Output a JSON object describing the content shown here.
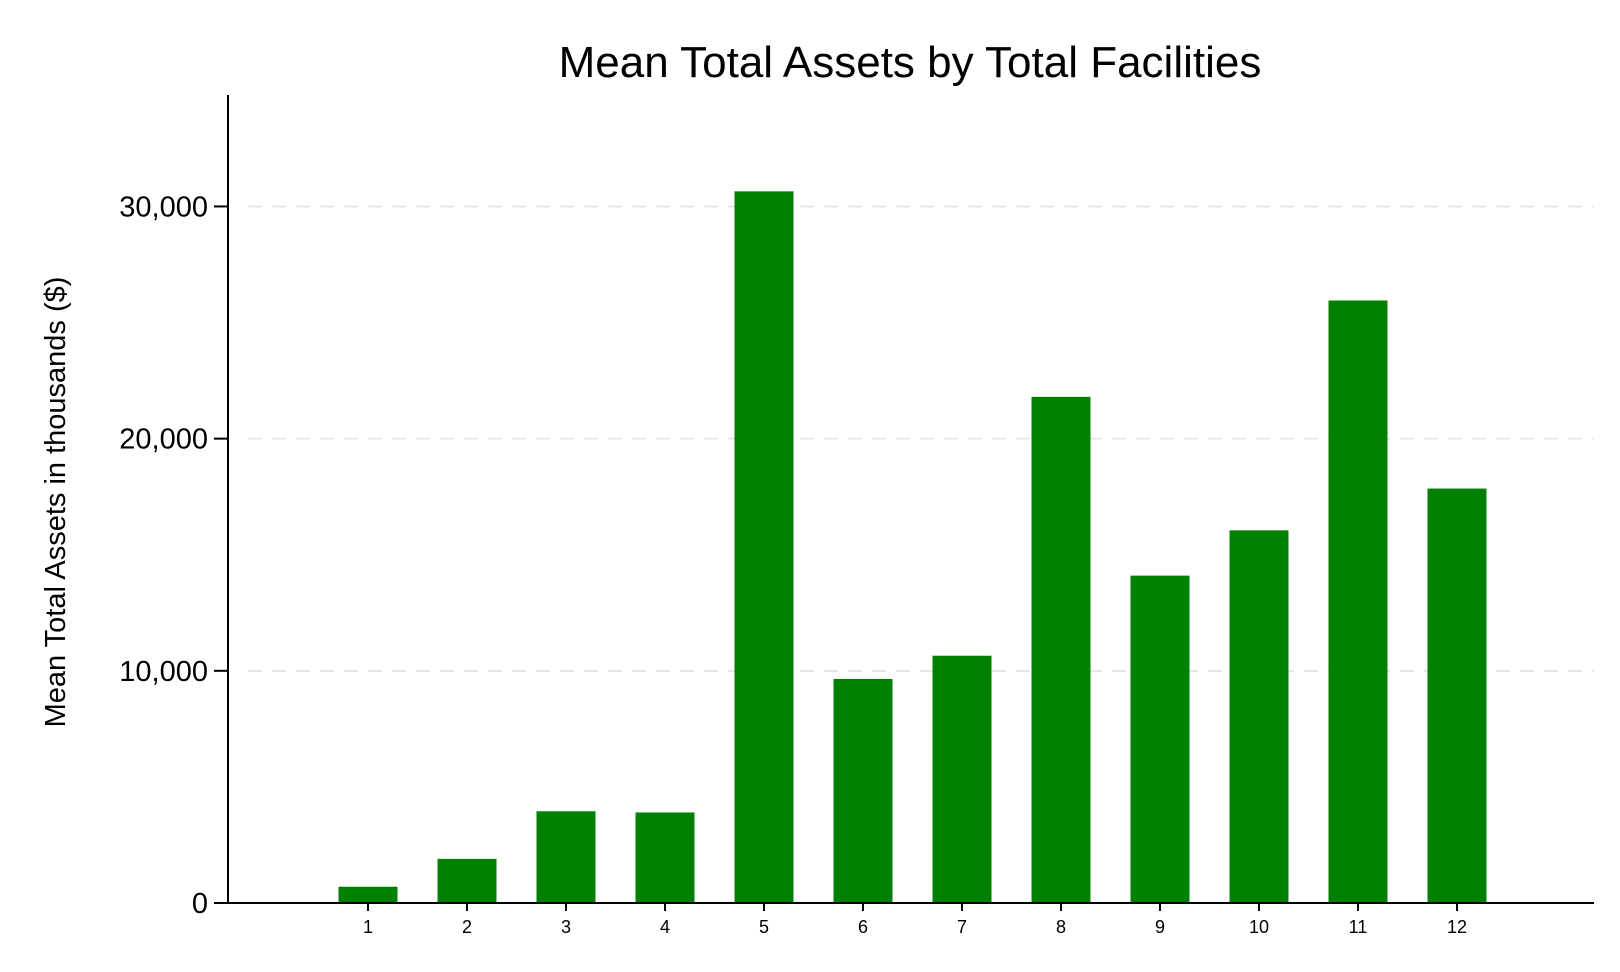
{
  "chart_data": {
    "type": "bar",
    "title": "Mean Total Assets by Total Facilities",
    "xlabel": "",
    "ylabel": "Mean Total Assets in thousands ($)",
    "categories": [
      "1",
      "2",
      "3",
      "4",
      "5",
      "6",
      "7",
      "8",
      "9",
      "10",
      "11",
      "12"
    ],
    "values": [
      700,
      1900,
      3950,
      3900,
      30650,
      9650,
      10650,
      21800,
      14100,
      16050,
      25950,
      17850
    ],
    "ylim": [
      0,
      34800
    ],
    "yticks": [
      0,
      10000,
      20000,
      30000
    ],
    "ytick_labels": [
      "0",
      "10,000",
      "20,000",
      "30,000"
    ],
    "grid": "horizontal dashed",
    "bar_color": "#008000",
    "grid_color": "#e6e6e6",
    "axis_color": "#000000"
  }
}
